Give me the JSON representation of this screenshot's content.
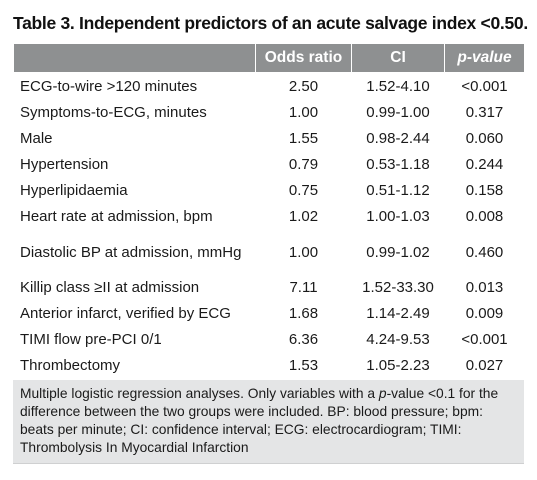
{
  "title": "Table 3. Independent predictors of an acute salvage index <0.50.",
  "headers": {
    "col1": "",
    "col2": "Odds ratio",
    "col3": "CI",
    "col4": "p-value"
  },
  "rows": [
    {
      "label": "ECG-to-wire >120 minutes",
      "or": "2.50",
      "ci": "1.52-4.10",
      "p": "<0.001"
    },
    {
      "label": "Symptoms-to-ECG, minutes",
      "or": "1.00",
      "ci": "0.99-1.00",
      "p": "0.317"
    },
    {
      "label": "Male",
      "or": "1.55",
      "ci": "0.98-2.44",
      "p": "0.060"
    },
    {
      "label": "Hypertension",
      "or": "0.79",
      "ci": "0.53-1.18",
      "p": "0.244"
    },
    {
      "label": "Hyperlipidaemia",
      "or": "0.75",
      "ci": "0.51-1.12",
      "p": "0.158"
    },
    {
      "label": "Heart rate at admission, bpm",
      "or": "1.02",
      "ci": "1.00-1.03",
      "p": "0.008"
    },
    {
      "label": "Diastolic BP at admission, mmHg",
      "or": "1.00",
      "ci": "0.99-1.02",
      "p": "0.460"
    },
    {
      "label": "Killip class ≥II at admission",
      "or": "7.11",
      "ci": "1.52-33.30",
      "p": "0.013"
    },
    {
      "label": "Anterior infarct, verified by ECG",
      "or": "1.68",
      "ci": "1.14-2.49",
      "p": "0.009"
    },
    {
      "label": "TIMI flow pre-PCI 0/1",
      "or": "6.36",
      "ci": "4.24-9.53",
      "p": "<0.001"
    },
    {
      "label": "Thrombectomy",
      "or": "1.53",
      "ci": "1.05-2.23",
      "p": "0.027"
    }
  ],
  "footnote": {
    "part1": "Multiple logistic regression analyses. Only variables with a ",
    "italic": "p",
    "part2": "-value <0.1 for the difference between the two groups were included. BP: blood pressure; bpm: beats per minute; CI: confidence interval; ECG: electrocardiogram; TIMI: Thrombolysis In Myocardial Infarction"
  }
}
